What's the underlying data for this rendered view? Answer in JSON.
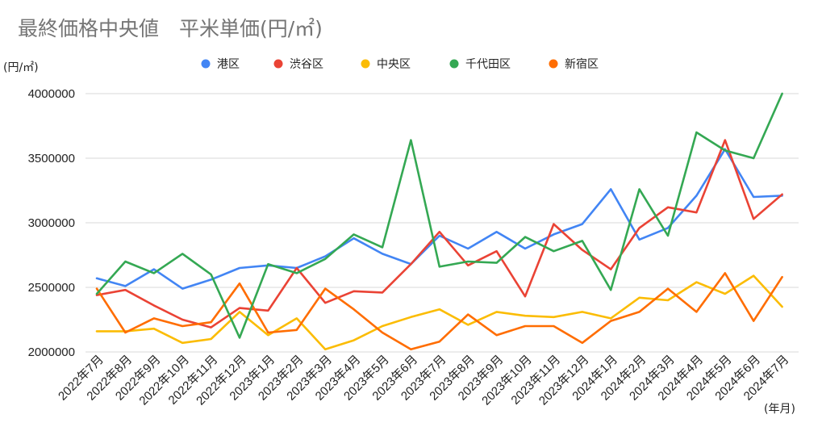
{
  "chart_data": {
    "type": "line",
    "title": "最終価格中央値　平米単価(円/㎡)",
    "ylabel": "(円/㎡)",
    "xlabel": "(年月)",
    "ylim": [
      2000000,
      4000000
    ],
    "yticks": [
      "4000000",
      "3500000",
      "3000000",
      "2500000",
      "2000000"
    ],
    "ytick_values": [
      4000000,
      3500000,
      3000000,
      2500000,
      2000000
    ],
    "grid": true,
    "legend_position": "top",
    "categories": [
      "2022年7月",
      "2022年8月",
      "2022年9月",
      "2022年10月",
      "2022年11月",
      "2022年12月",
      "2023年1月",
      "2023年2月",
      "2023年3月",
      "2023年4月",
      "2023年5月",
      "2023年6月",
      "2023年7月",
      "2023年8月",
      "2023年9月",
      "2023年10月",
      "2023年11月",
      "2023年12月",
      "2024年1月",
      "2024年2月",
      "2024年3月",
      "2024年4月",
      "2024年5月",
      "2024年6月",
      "2024年7月"
    ],
    "series": [
      {
        "name": "港区",
        "color": "#4285f4",
        "values": [
          2570000,
          2510000,
          2640000,
          2490000,
          2560000,
          2650000,
          2670000,
          2650000,
          2740000,
          2880000,
          2760000,
          2680000,
          2900000,
          2800000,
          2930000,
          2800000,
          2910000,
          2990000,
          3260000,
          2870000,
          2960000,
          3210000,
          3570000,
          3200000,
          3210000
        ]
      },
      {
        "name": "渋谷区",
        "color": "#ea4335",
        "values": [
          2440000,
          2480000,
          2360000,
          2250000,
          2190000,
          2340000,
          2320000,
          2650000,
          2380000,
          2470000,
          2460000,
          2680000,
          2930000,
          2670000,
          2780000,
          2430000,
          2990000,
          2790000,
          2640000,
          2960000,
          3120000,
          3080000,
          3640000,
          3030000,
          3220000
        ]
      },
      {
        "name": "中央区",
        "color": "#fbbc04",
        "values": [
          2160000,
          2160000,
          2180000,
          2070000,
          2100000,
          2310000,
          2130000,
          2260000,
          2020000,
          2090000,
          2200000,
          2270000,
          2330000,
          2210000,
          2310000,
          2280000,
          2270000,
          2310000,
          2260000,
          2420000,
          2400000,
          2540000,
          2450000,
          2590000,
          2350000
        ]
      },
      {
        "name": "千代田区",
        "color": "#34a853",
        "values": [
          2450000,
          2700000,
          2610000,
          2760000,
          2600000,
          2110000,
          2680000,
          2610000,
          2720000,
          2910000,
          2810000,
          3640000,
          2660000,
          2700000,
          2690000,
          2890000,
          2780000,
          2860000,
          2480000,
          3260000,
          2900000,
          3700000,
          3560000,
          3500000,
          4000000
        ]
      },
      {
        "name": "新宿区",
        "color": "#ff6d01",
        "values": [
          2490000,
          2150000,
          2260000,
          2200000,
          2230000,
          2530000,
          2150000,
          2170000,
          2490000,
          2330000,
          2150000,
          2020000,
          2080000,
          2290000,
          2130000,
          2200000,
          2200000,
          2070000,
          2240000,
          2310000,
          2490000,
          2310000,
          2610000,
          2240000,
          2580000
        ]
      }
    ]
  }
}
